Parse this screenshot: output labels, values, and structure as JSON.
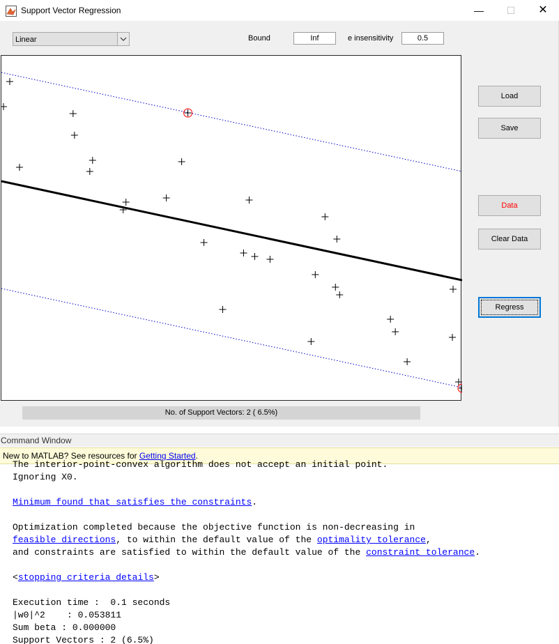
{
  "window": {
    "title": "Support Vector Regression",
    "controls": {
      "minimize": "—",
      "maximize": "☐",
      "close": "✕"
    }
  },
  "kernel_select": {
    "value": "Linear"
  },
  "bound": {
    "label": "Bound",
    "value": "Inf"
  },
  "epsilon": {
    "label": "e insensitivity",
    "value": "0.5"
  },
  "buttons": {
    "load": "Load",
    "save": "Save",
    "data": "Data",
    "clear": "Clear Data",
    "regress": "Regress"
  },
  "status": "No. of Support Vectors: 2 ( 6.5%)",
  "colors": {
    "data_button": "#ff0000",
    "margin_lines": "#0000cc",
    "support_vector_ring": "#ff0000"
  },
  "chart_data": {
    "type": "scatter",
    "x": [
      12,
      3,
      103,
      105,
      26,
      131,
      127,
      259,
      179,
      175,
      237,
      356,
      291,
      348,
      364,
      386,
      465,
      482,
      451,
      480,
      486,
      318,
      559,
      566,
      445,
      583,
      649,
      648,
      657,
      662,
      268
    ],
    "y": [
      116,
      152,
      162,
      193,
      239,
      229,
      245,
      231,
      289,
      300,
      283,
      286,
      347,
      362,
      367,
      371,
      310,
      342,
      393,
      411,
      422,
      443,
      457,
      475,
      489,
      518,
      414,
      483,
      547,
      556,
      161
    ],
    "support_vectors": [
      [
        268,
        161
      ],
      [
        662,
        556
      ]
    ],
    "regression_line": [
      [
        0,
        259
      ],
      [
        662,
        401
      ]
    ],
    "upper_margin": [
      [
        0,
        103
      ],
      [
        662,
        245
      ]
    ],
    "lower_margin": [
      [
        0,
        413
      ],
      [
        662,
        555
      ]
    ],
    "xlim": [
      0,
      662
    ],
    "ylim": [
      79,
      575
    ],
    "grid": false
  },
  "command_window": {
    "title": "Command Window",
    "info": {
      "prefix": "New to MATLAB? See resources for ",
      "link": "Getting Started",
      "suffix": "."
    },
    "lines": [
      {
        "text": "The interior-point-convex algorithm does not accept an initial point."
      },
      {
        "text": "Ignoring X0."
      },
      {
        "text": ""
      },
      {
        "link": "Minimum found that satisfies the constraints",
        "after": "."
      },
      {
        "text": ""
      },
      {
        "text": "Optimization completed because the objective function is non-decreasing in"
      },
      {
        "link": "feasible directions",
        "after": ", to within the default value of the ",
        "link2": "optimality tolerance",
        "after2": ","
      },
      {
        "before": "and constraints are satisfied to within the default value of the ",
        "link": "constraint tolerance",
        "after": "."
      },
      {
        "text": ""
      },
      {
        "before": "<",
        "link": "stopping criteria details",
        "after": ">"
      },
      {
        "text": ""
      },
      {
        "text": "Execution time :  0.1 seconds"
      },
      {
        "text": "|w0|^2    : 0.053811"
      },
      {
        "text": "Sum beta : 0.000000"
      },
      {
        "text": "Support Vectors : 2 (6.5%)"
      }
    ]
  }
}
